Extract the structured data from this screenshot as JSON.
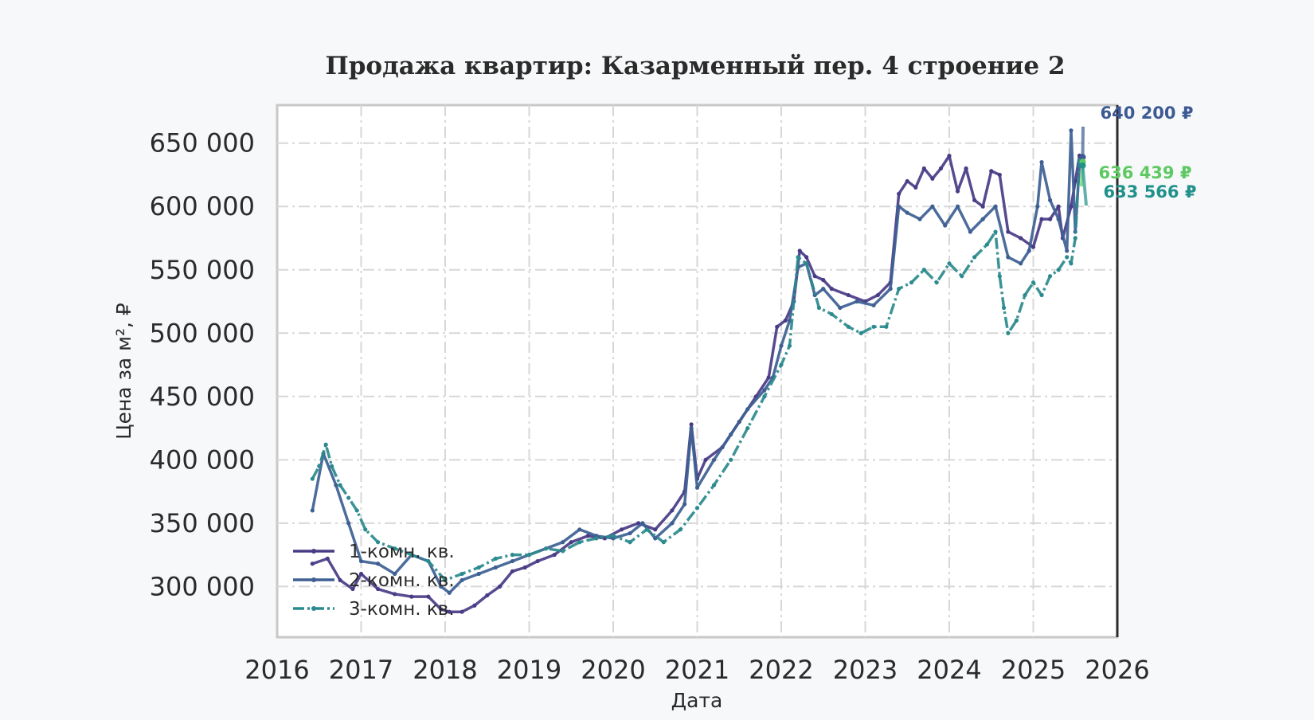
{
  "chart_data": {
    "type": "line",
    "title": "Продажа квартир: Казарменный пер. 4 строение 2",
    "xlabel": "Дата",
    "ylabel": "Цена за м², ₽",
    "x_ticks": [
      "2016",
      "2017",
      "2018",
      "2019",
      "2020",
      "2021",
      "2022",
      "2023",
      "2024",
      "2025",
      "2026"
    ],
    "y_ticks": [
      "300 000",
      "350 000",
      "400 000",
      "450 000",
      "500 000",
      "550 000",
      "600 000",
      "650 000"
    ],
    "xlim": [
      2016.0,
      2026.0
    ],
    "ylim": [
      260000,
      680000
    ],
    "grid": true,
    "legend_position": "lower-left",
    "series": [
      {
        "name": "1-комн. кв.",
        "color": "#4a3b86",
        "style": "solid",
        "x": [
          2016.42,
          2016.6,
          2016.75,
          2016.9,
          2017.0,
          2017.2,
          2017.4,
          2017.6,
          2017.8,
          2017.95,
          2018.05,
          2018.2,
          2018.35,
          2018.5,
          2018.65,
          2018.8,
          2018.95,
          2019.1,
          2019.3,
          2019.5,
          2019.7,
          2019.9,
          2020.1,
          2020.3,
          2020.5,
          2020.7,
          2020.85,
          2020.93,
          2021.0,
          2021.1,
          2021.3,
          2021.5,
          2021.7,
          2021.85,
          2021.95,
          2022.05,
          2022.15,
          2022.22,
          2022.3,
          2022.4,
          2022.5,
          2022.6,
          2022.8,
          2023.0,
          2023.15,
          2023.3,
          2023.4,
          2023.5,
          2023.6,
          2023.7,
          2023.8,
          2023.9,
          2024.0,
          2024.1,
          2024.2,
          2024.3,
          2024.4,
          2024.5,
          2024.6,
          2024.7,
          2024.85,
          2025.0,
          2025.1,
          2025.2,
          2025.3,
          2025.35,
          2025.45,
          2025.5,
          2025.55
        ],
        "y": [
          318000,
          322000,
          305000,
          298000,
          310000,
          298000,
          294000,
          292000,
          292000,
          282000,
          280000,
          280000,
          285000,
          293000,
          300000,
          312000,
          315000,
          320000,
          325000,
          335000,
          340000,
          338000,
          345000,
          350000,
          345000,
          360000,
          375000,
          428000,
          385000,
          400000,
          410000,
          430000,
          450000,
          465000,
          505000,
          510000,
          525000,
          565000,
          560000,
          545000,
          542000,
          535000,
          530000,
          525000,
          530000,
          540000,
          610000,
          620000,
          615000,
          630000,
          622000,
          630000,
          640000,
          612000,
          630000,
          605000,
          600000,
          628000,
          625000,
          580000,
          575000,
          568000,
          590000,
          590000,
          600000,
          575000,
          600000,
          620000,
          640200
        ]
      },
      {
        "name": "2-комн. кв.",
        "color": "#3d5f92",
        "style": "solid",
        "x": [
          2016.42,
          2016.55,
          2016.7,
          2016.85,
          2017.0,
          2017.2,
          2017.4,
          2017.6,
          2017.8,
          2017.95,
          2018.05,
          2018.2,
          2018.4,
          2018.6,
          2018.8,
          2019.0,
          2019.2,
          2019.4,
          2019.6,
          2019.8,
          2020.0,
          2020.2,
          2020.35,
          2020.5,
          2020.7,
          2020.85,
          2020.93,
          2021.0,
          2021.2,
          2021.4,
          2021.6,
          2021.8,
          2021.9,
          2022.0,
          2022.1,
          2022.2,
          2022.3,
          2022.4,
          2022.5,
          2022.7,
          2022.9,
          2023.1,
          2023.3,
          2023.4,
          2023.5,
          2023.65,
          2023.8,
          2023.95,
          2024.1,
          2024.25,
          2024.4,
          2024.55,
          2024.7,
          2024.85,
          2024.95,
          2025.05,
          2025.1,
          2025.2,
          2025.3,
          2025.4,
          2025.45,
          2025.5,
          2025.55
        ],
        "y": [
          360000,
          405000,
          380000,
          350000,
          320000,
          318000,
          310000,
          325000,
          320000,
          300000,
          295000,
          305000,
          310000,
          315000,
          320000,
          325000,
          330000,
          335000,
          345000,
          340000,
          338000,
          342000,
          350000,
          338000,
          350000,
          365000,
          425000,
          378000,
          400000,
          420000,
          440000,
          455000,
          465000,
          490000,
          510000,
          552000,
          555000,
          530000,
          535000,
          520000,
          525000,
          522000,
          535000,
          600000,
          595000,
          590000,
          600000,
          585000,
          600000,
          580000,
          590000,
          600000,
          560000,
          555000,
          565000,
          600000,
          635000,
          605000,
          590000,
          565000,
          660000,
          580000,
          633566
        ]
      },
      {
        "name": "3-комн. кв.",
        "color": "#2b8a8d",
        "style": "dashdot",
        "x": [
          2016.42,
          2016.5,
          2016.58,
          2016.65,
          2016.75,
          2016.85,
          2016.95,
          2017.05,
          2017.2,
          2017.4,
          2017.6,
          2017.8,
          2018.0,
          2018.2,
          2018.4,
          2018.6,
          2018.8,
          2019.0,
          2019.2,
          2019.4,
          2019.6,
          2019.8,
          2020.0,
          2020.2,
          2020.4,
          2020.6,
          2020.8,
          2021.0,
          2021.2,
          2021.4,
          2021.6,
          2021.8,
          2022.0,
          2022.1,
          2022.2,
          2022.3,
          2022.45,
          2022.6,
          2022.8,
          2022.95,
          2023.1,
          2023.25,
          2023.4,
          2023.55,
          2023.7,
          2023.85,
          2024.0,
          2024.15,
          2024.3,
          2024.45,
          2024.55,
          2024.6,
          2024.65,
          2024.7,
          2024.8,
          2024.9,
          2025.0,
          2025.1,
          2025.2,
          2025.3,
          2025.4,
          2025.45,
          2025.5,
          2025.55
        ],
        "y": [
          385000,
          395000,
          412000,
          395000,
          380000,
          370000,
          360000,
          345000,
          335000,
          330000,
          325000,
          320000,
          305000,
          310000,
          315000,
          322000,
          325000,
          325000,
          330000,
          328000,
          335000,
          338000,
          340000,
          335000,
          345000,
          335000,
          345000,
          362000,
          380000,
          400000,
          425000,
          450000,
          475000,
          490000,
          560000,
          555000,
          520000,
          515000,
          505000,
          500000,
          505000,
          505000,
          535000,
          540000,
          550000,
          540000,
          555000,
          545000,
          560000,
          570000,
          580000,
          545000,
          520000,
          500000,
          510000,
          530000,
          540000,
          530000,
          545000,
          550000,
          560000,
          555000,
          575000,
          636439
        ]
      }
    ],
    "annotations": [
      {
        "text": "640 200 ₽",
        "series": 0,
        "color": "#3d5a94"
      },
      {
        "text": "636 439 ₽",
        "series": 2,
        "color": "#5ec962"
      },
      {
        "text": "633 566 ₽",
        "series": 1,
        "color": "#21918c"
      }
    ]
  }
}
